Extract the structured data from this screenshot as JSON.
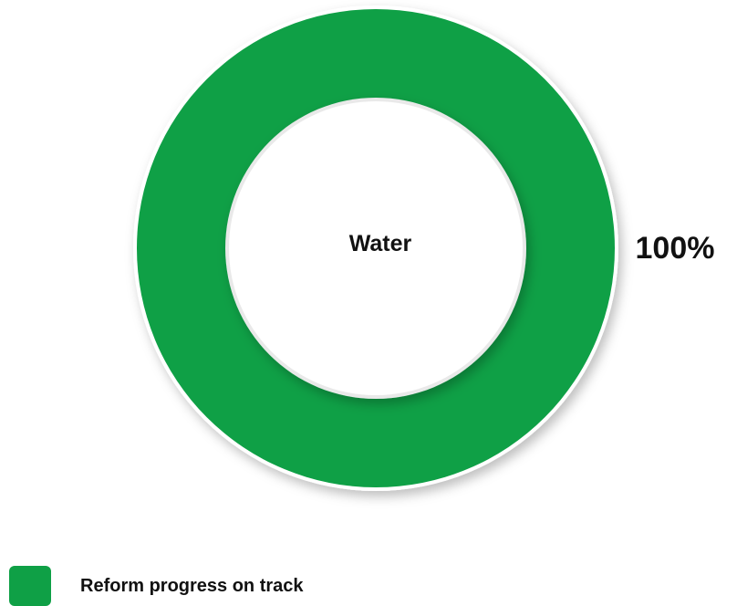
{
  "chart_data": {
    "type": "pie",
    "variant": "donut",
    "center_label": "Water",
    "slices": [
      {
        "name": "Reform progress on track",
        "value": 100,
        "label": "100%",
        "color": "#0fa046"
      }
    ],
    "legend": {
      "position": "bottom-left",
      "items": [
        {
          "label": "Reform progress on track",
          "color": "#0fa046"
        }
      ]
    }
  }
}
